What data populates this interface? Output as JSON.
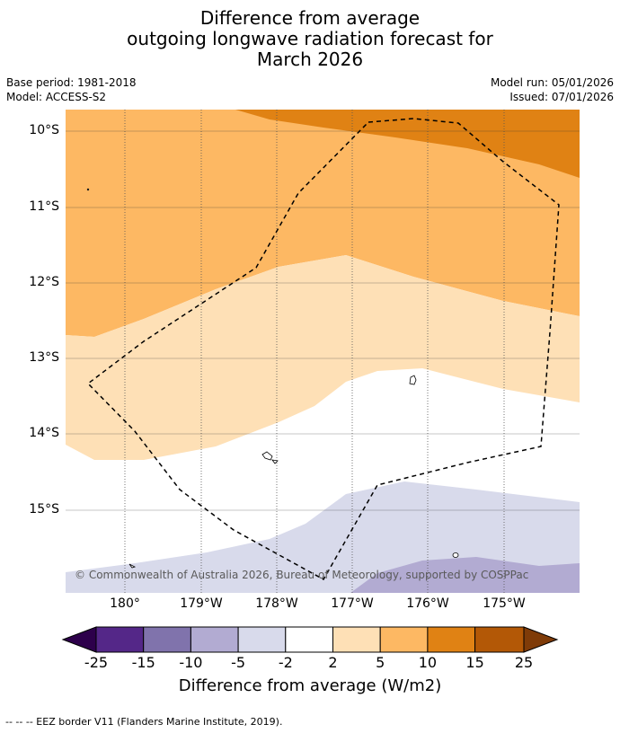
{
  "title": {
    "line1": "Difference from average",
    "line2": "outgoing longwave radiation forecast for",
    "line3": "March 2026"
  },
  "meta": {
    "base_period": "Base period: 1981-2018",
    "model": "Model: ACCESS-S2",
    "model_run": "Model run: 05/01/2026",
    "issued": "Issued: 07/01/2026"
  },
  "map": {
    "lat_labels": [
      "10°S",
      "11°S",
      "12°S",
      "13°S",
      "14°S",
      "15°S"
    ],
    "lon_labels": [
      "180°",
      "179°W",
      "178°W",
      "177°W",
      "176°W",
      "175°W"
    ],
    "copyright": "© Commonwealth of Australia 2026, Bureau of Meteorology, supported by COSPPac"
  },
  "colorbar": {
    "ticks": [
      "-25",
      "-15",
      "-10",
      "-5",
      "-2",
      "2",
      "5",
      "10",
      "15",
      "25"
    ],
    "colors": {
      "below_min": "#2d004b",
      "c1": "#542788",
      "c2": "#8073ac",
      "c3": "#b2abd2",
      "c4": "#d8daeb",
      "c5": "#ffffff",
      "c6": "#fee0b6",
      "c7": "#fdb863",
      "c8": "#e08214",
      "c9": "#b35806",
      "above_max": "#7f3b08"
    },
    "label": "Difference from average (W/m2)"
  },
  "footnote": "--  --  -- EEZ border V11 (Flanders Marine Institute, 2019)."
}
